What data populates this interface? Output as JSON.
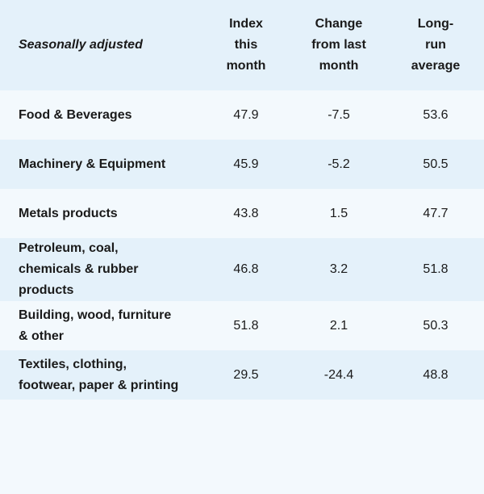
{
  "table": {
    "header": [
      "Seasonally adjusted",
      "Index this month",
      "Change from last month",
      "Long-run average"
    ],
    "rows": [
      [
        "Food & Beverages",
        47.9,
        -7.5,
        53.6
      ],
      [
        "Machinery & Equipment",
        45.9,
        -5.2,
        50.5
      ],
      [
        "Metals products",
        43.8,
        1.5,
        47.7
      ],
      [
        "Petroleum, coal, chemicals & rubber products",
        46.8,
        3.2,
        51.8
      ],
      [
        "Building, wood, furniture & other",
        51.8,
        2.1,
        50.3
      ],
      [
        "Textiles, clothing, footwear, paper & printing",
        29.5,
        -24.4,
        48.8
      ]
    ]
  }
}
